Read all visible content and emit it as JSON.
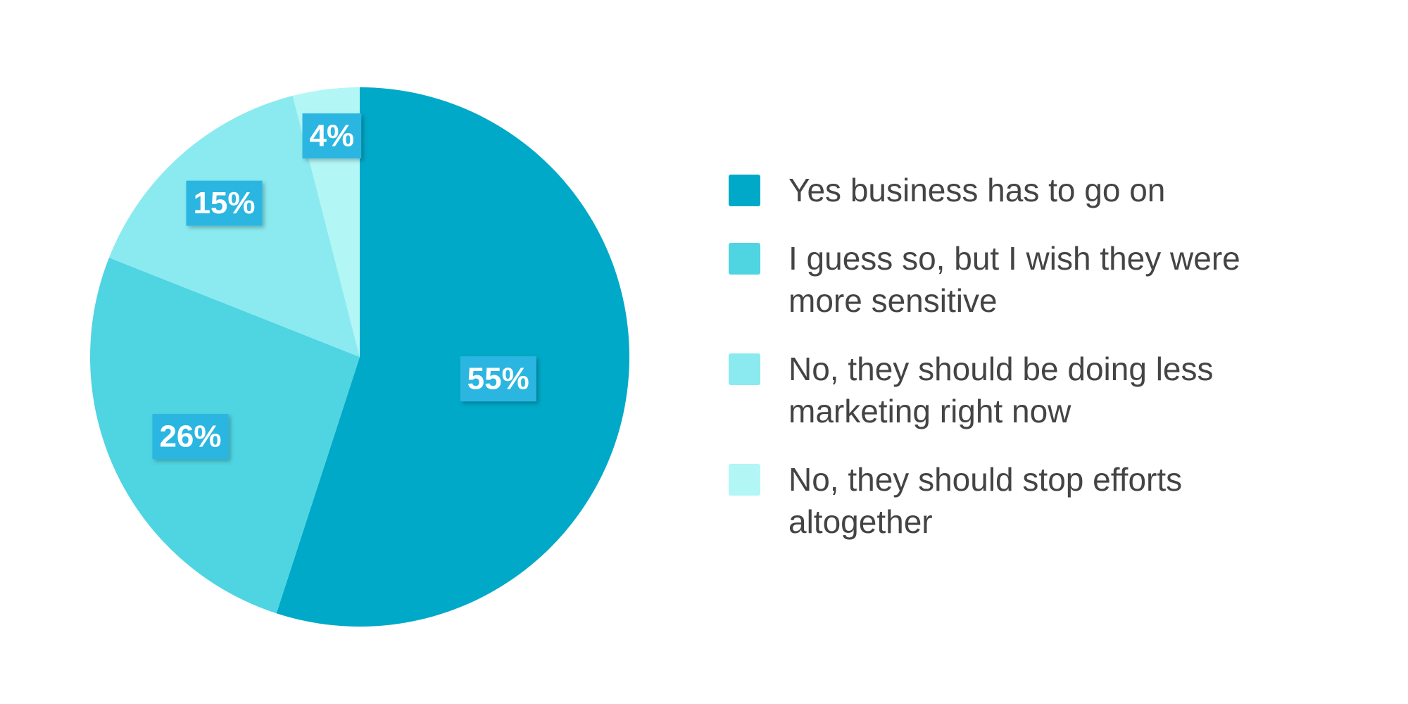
{
  "chart_data": {
    "type": "pie",
    "categories": [
      "Yes business has to go on",
      "I guess so, but I wish they were more sensitive",
      "No, they should be doing less marketing right now",
      "No, they should stop efforts altogether"
    ],
    "values": [
      55,
      26,
      15,
      4
    ],
    "value_labels": [
      "55%",
      "26%",
      "15%",
      "4%"
    ],
    "colors": [
      "#00a9c7",
      "#4fd4e2",
      "#8aeaf0",
      "#b3f6f6"
    ],
    "label_color": "#29b6e0",
    "legend": "right"
  }
}
